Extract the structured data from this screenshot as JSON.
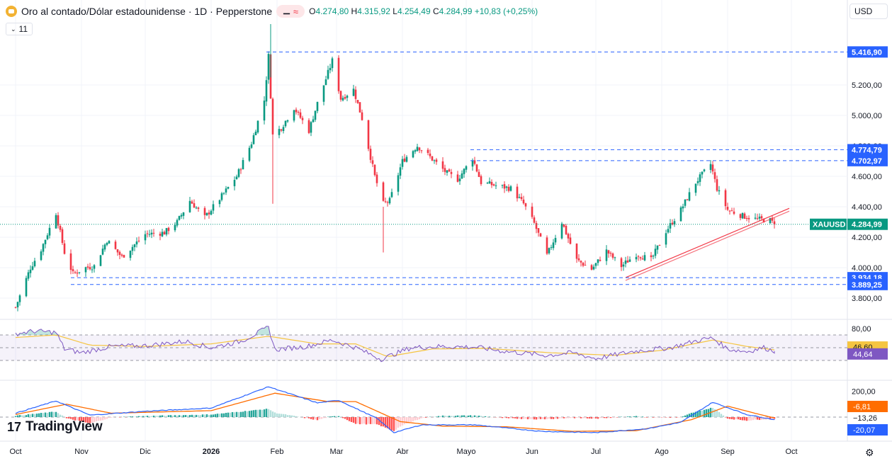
{
  "header": {
    "title": "Oro al contado/Dólar estadounidense · 1D · Pepperstone",
    "badge_market": "⚊",
    "badge_wave": "≈",
    "open_label": "O",
    "open": "4.274,80",
    "high_label": "H",
    "high": "4.315,92",
    "low_label": "L",
    "low": "4.254,49",
    "close_label": "C",
    "close": "4.284,99",
    "change": "+10,83 (+0,25%)",
    "indicator_count": "11",
    "currency": "USD"
  },
  "logo": {
    "mark": "17",
    "text": "TradingView"
  },
  "colors": {
    "up": "#089981",
    "down": "#f23645",
    "rsi": "#7e57c2",
    "rsi_ma": "#f5c542",
    "macd": "#2962ff",
    "signal": "#ff6d00",
    "level": "#2962ff"
  },
  "chart_data": [
    {
      "type": "candlestick",
      "title": "Oro al contado/Dólar estadounidense · 1D · Pepperstone",
      "x_axis": {
        "type": "date",
        "ticks": [
          "Oct",
          "Nov",
          "Dic",
          "2026",
          "Feb",
          "Mar",
          "Abr",
          "Mayo",
          "Jun",
          "Jul",
          "Ago",
          "Sep",
          "Oct"
        ]
      },
      "y_axis": {
        "ticks": [
          "5.200,00",
          "5.000,00",
          "4.800,00",
          "4.600,00",
          "4.400,00",
          "4.200,00",
          "4.000,00",
          "3.800,00"
        ],
        "range": [
          3770,
          5620
        ]
      },
      "price_path": [
        [
          "2025-10-01",
          3740
        ],
        [
          "2025-10-08",
          4000
        ],
        [
          "2025-10-13",
          4120
        ],
        [
          "2025-10-20",
          4360
        ],
        [
          "2025-10-24",
          4100
        ],
        [
          "2025-10-28",
          3960
        ],
        [
          "2025-11-03",
          4000
        ],
        [
          "2025-11-07",
          4010
        ],
        [
          "2025-11-13",
          4180
        ],
        [
          "2025-11-20",
          4070
        ],
        [
          "2025-12-01",
          4220
        ],
        [
          "2025-12-10",
          4230
        ],
        [
          "2025-12-16",
          4300
        ],
        [
          "2025-12-22",
          4440
        ],
        [
          "2025-12-29",
          4330
        ],
        [
          "2026-01-06",
          4470
        ],
        [
          "2026-01-13",
          4600
        ],
        [
          "2026-01-20",
          4820
        ],
        [
          "2026-01-26",
          5100
        ],
        [
          "2026-01-28",
          5390
        ],
        [
          "2026-01-30",
          4870
        ],
        [
          "2026-02-03",
          4920
        ],
        [
          "2026-02-09",
          5050
        ],
        [
          "2026-02-16",
          4900
        ],
        [
          "2026-02-20",
          5080
        ],
        [
          "2026-02-27",
          5360
        ],
        [
          "2026-03-03",
          5110
        ],
        [
          "2026-03-09",
          5170
        ],
        [
          "2026-03-13",
          4980
        ],
        [
          "2026-03-19",
          4600
        ],
        [
          "2026-03-23",
          4420
        ],
        [
          "2026-03-26",
          4440
        ],
        [
          "2026-04-01",
          4700
        ],
        [
          "2026-04-08",
          4800
        ],
        [
          "2026-04-13",
          4740
        ],
        [
          "2026-04-22",
          4620
        ],
        [
          "2026-04-27",
          4580
        ],
        [
          "2026-05-04",
          4720
        ],
        [
          "2026-05-08",
          4560
        ],
        [
          "2026-05-15",
          4540
        ],
        [
          "2026-05-22",
          4520
        ],
        [
          "2026-05-28",
          4420
        ],
        [
          "2026-06-02",
          4290
        ],
        [
          "2026-06-08",
          4080
        ],
        [
          "2026-06-15",
          4300
        ],
        [
          "2026-06-22",
          4050
        ],
        [
          "2026-06-29",
          3990
        ],
        [
          "2026-07-06",
          4110
        ],
        [
          "2026-07-13",
          4010
        ],
        [
          "2026-07-20",
          4090
        ],
        [
          "2026-07-27",
          4050
        ],
        [
          "2026-08-03",
          4240
        ],
        [
          "2026-08-10",
          4380
        ],
        [
          "2026-08-17",
          4560
        ],
        [
          "2026-08-24",
          4680
        ],
        [
          "2026-08-27",
          4520
        ],
        [
          "2026-09-01",
          4380
        ],
        [
          "2026-09-08",
          4340
        ],
        [
          "2026-09-14",
          4320
        ],
        [
          "2026-09-21",
          4310
        ],
        [
          "2026-09-23",
          4284.99
        ]
      ],
      "levels": [
        {
          "label": "5.416,90",
          "value": 5416.9
        },
        {
          "label": "4.774,79",
          "value": 4774.79
        },
        {
          "label": "4.702,97",
          "value": 4702.97
        },
        {
          "label": "3.934,18",
          "value": 3934.18
        },
        {
          "label": "3.889,25",
          "value": 3889.25
        }
      ],
      "trendline": {
        "from": [
          "2026-07-15",
          3935
        ],
        "to": [
          "2026-09-30",
          4390
        ]
      },
      "last_price": {
        "symbol": "XAUUSD",
        "label": "4.284,99",
        "value": 4284.99
      }
    },
    {
      "type": "line",
      "name": "RSI",
      "y_ticks": [
        "80,00"
      ],
      "band": [
        30,
        70
      ],
      "series": [
        {
          "name": "RSI",
          "last_label": "44,64",
          "last": 44.64,
          "points": [
            [
              "2025-10-01",
              72
            ],
            [
              "2025-10-10",
              76
            ],
            [
              "2025-10-20",
              74
            ],
            [
              "2025-10-24",
              48
            ],
            [
              "2025-11-01",
              42
            ],
            [
              "2025-11-15",
              52
            ],
            [
              "2025-12-01",
              53
            ],
            [
              "2025-12-20",
              60
            ],
            [
              "2026-01-01",
              50
            ],
            [
              "2026-01-15",
              60
            ],
            [
              "2026-01-28",
              82
            ],
            [
              "2026-01-31",
              47
            ],
            [
              "2026-02-15",
              52
            ],
            [
              "2026-02-27",
              62
            ],
            [
              "2026-03-10",
              50
            ],
            [
              "2026-03-22",
              32
            ],
            [
              "2026-04-05",
              50
            ],
            [
              "2026-04-20",
              52
            ],
            [
              "2026-05-05",
              51
            ],
            [
              "2026-05-20",
              44
            ],
            [
              "2026-06-08",
              38
            ],
            [
              "2026-06-20",
              42
            ],
            [
              "2026-07-01",
              33
            ],
            [
              "2026-07-20",
              45
            ],
            [
              "2026-08-05",
              50
            ],
            [
              "2026-08-20",
              63
            ],
            [
              "2026-08-25",
              65
            ],
            [
              "2026-09-01",
              48
            ],
            [
              "2026-09-10",
              44
            ],
            [
              "2026-09-18",
              50
            ],
            [
              "2026-09-23",
              44.64
            ]
          ]
        },
        {
          "name": "RSI MA",
          "last_label": "46,60",
          "last": 46.6,
          "points": [
            [
              "2025-10-01",
              66
            ],
            [
              "2025-10-20",
              70
            ],
            [
              "2025-11-05",
              54
            ],
            [
              "2025-12-01",
              52
            ],
            [
              "2026-01-01",
              56
            ],
            [
              "2026-01-28",
              68
            ],
            [
              "2026-02-20",
              56
            ],
            [
              "2026-03-10",
              56
            ],
            [
              "2026-03-25",
              36
            ],
            [
              "2026-04-15",
              48
            ],
            [
              "2026-05-10",
              49
            ],
            [
              "2026-06-10",
              42
            ],
            [
              "2026-07-10",
              38
            ],
            [
              "2026-08-01",
              46
            ],
            [
              "2026-08-25",
              62
            ],
            [
              "2026-09-10",
              52
            ],
            [
              "2026-09-23",
              46.6
            ]
          ]
        }
      ]
    },
    {
      "type": "bar+line",
      "name": "MACD",
      "y_ticks": [
        "200,00"
      ],
      "series": [
        {
          "name": "MACD",
          "last_label": "-20,07",
          "last": -20.07,
          "points": [
            [
              "2025-10-01",
              30
            ],
            [
              "2025-10-20",
              125
            ],
            [
              "2025-11-05",
              15
            ],
            [
              "2025-12-01",
              45
            ],
            [
              "2026-01-01",
              70
            ],
            [
              "2026-01-28",
              235
            ],
            [
              "2026-02-20",
              110
            ],
            [
              "2026-03-02",
              130
            ],
            [
              "2026-03-20",
              -10
            ],
            [
              "2026-03-28",
              -120
            ],
            [
              "2026-04-10",
              -60
            ],
            [
              "2026-05-05",
              -60
            ],
            [
              "2026-06-05",
              -110
            ],
            [
              "2026-07-01",
              -120
            ],
            [
              "2026-07-25",
              -90
            ],
            [
              "2026-08-10",
              -40
            ],
            [
              "2026-08-25",
              115
            ],
            [
              "2026-09-10",
              20
            ],
            [
              "2026-09-23",
              -20.07
            ]
          ]
        },
        {
          "name": "Signal",
          "last_label": "-6,81",
          "last": -6.81,
          "points": [
            [
              "2025-10-01",
              20
            ],
            [
              "2025-10-25",
              100
            ],
            [
              "2025-11-15",
              30
            ],
            [
              "2026-01-01",
              50
            ],
            [
              "2026-01-31",
              185
            ],
            [
              "2026-02-25",
              120
            ],
            [
              "2026-03-10",
              120
            ],
            [
              "2026-03-31",
              -35
            ],
            [
              "2026-04-20",
              -70
            ],
            [
              "2026-05-20",
              -75
            ],
            [
              "2026-06-20",
              -110
            ],
            [
              "2026-07-20",
              -105
            ],
            [
              "2026-08-15",
              -20
            ],
            [
              "2026-09-01",
              85
            ],
            [
              "2026-09-15",
              25
            ],
            [
              "2026-09-23",
              -6.81
            ]
          ]
        },
        {
          "name": "Histogram",
          "last_label": "−13,26",
          "last": -13.26
        }
      ]
    }
  ]
}
